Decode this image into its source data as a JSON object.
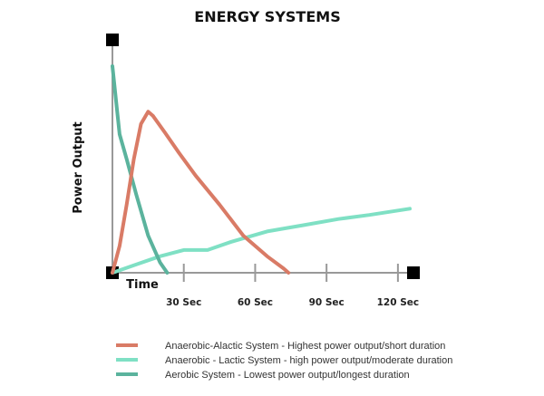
{
  "chart_data": {
    "type": "line",
    "title": "ENERGY SYSTEMS",
    "xlabel": "Time",
    "ylabel": "Power Output",
    "xlim": [
      0,
      125
    ],
    "ylim": [
      0,
      100
    ],
    "x_ticks": [
      {
        "value": 30,
        "label": "30 Sec"
      },
      {
        "value": 60,
        "label": "60 Sec"
      },
      {
        "value": 90,
        "label": "90 Sec"
      },
      {
        "value": 120,
        "label": "120 Sec"
      }
    ],
    "grid": false,
    "legend_position": "bottom",
    "series": [
      {
        "name": "Anaerobic-Alactic System - Highest power output/short duration",
        "color": "#D97B66",
        "points": [
          [
            0,
            0
          ],
          [
            3,
            13
          ],
          [
            6,
            33
          ],
          [
            9,
            55
          ],
          [
            12,
            72
          ],
          [
            15,
            78
          ],
          [
            17,
            76
          ],
          [
            22,
            68
          ],
          [
            28,
            58
          ],
          [
            35,
            47
          ],
          [
            45,
            33
          ],
          [
            55,
            18
          ],
          [
            65,
            8
          ],
          [
            72,
            2
          ],
          [
            74,
            0
          ]
        ]
      },
      {
        "name": "Anaerobic - Lactic System - high power output/moderate duration",
        "color": "#7FE0C4",
        "points": [
          [
            0,
            0
          ],
          [
            10,
            4
          ],
          [
            20,
            8
          ],
          [
            30,
            11
          ],
          [
            40,
            11
          ],
          [
            50,
            15
          ],
          [
            65,
            20
          ],
          [
            80,
            23
          ],
          [
            95,
            26
          ],
          [
            108,
            28
          ],
          [
            125,
            31
          ]
        ]
      },
      {
        "name": "Aerobic System - Lowest power output/longest duration",
        "color": "#5BB39D",
        "points": [
          [
            0,
            100
          ],
          [
            3,
            67
          ],
          [
            6,
            55
          ],
          [
            10,
            38
          ],
          [
            15,
            18
          ],
          [
            20,
            5
          ],
          [
            23,
            0
          ]
        ]
      }
    ]
  }
}
